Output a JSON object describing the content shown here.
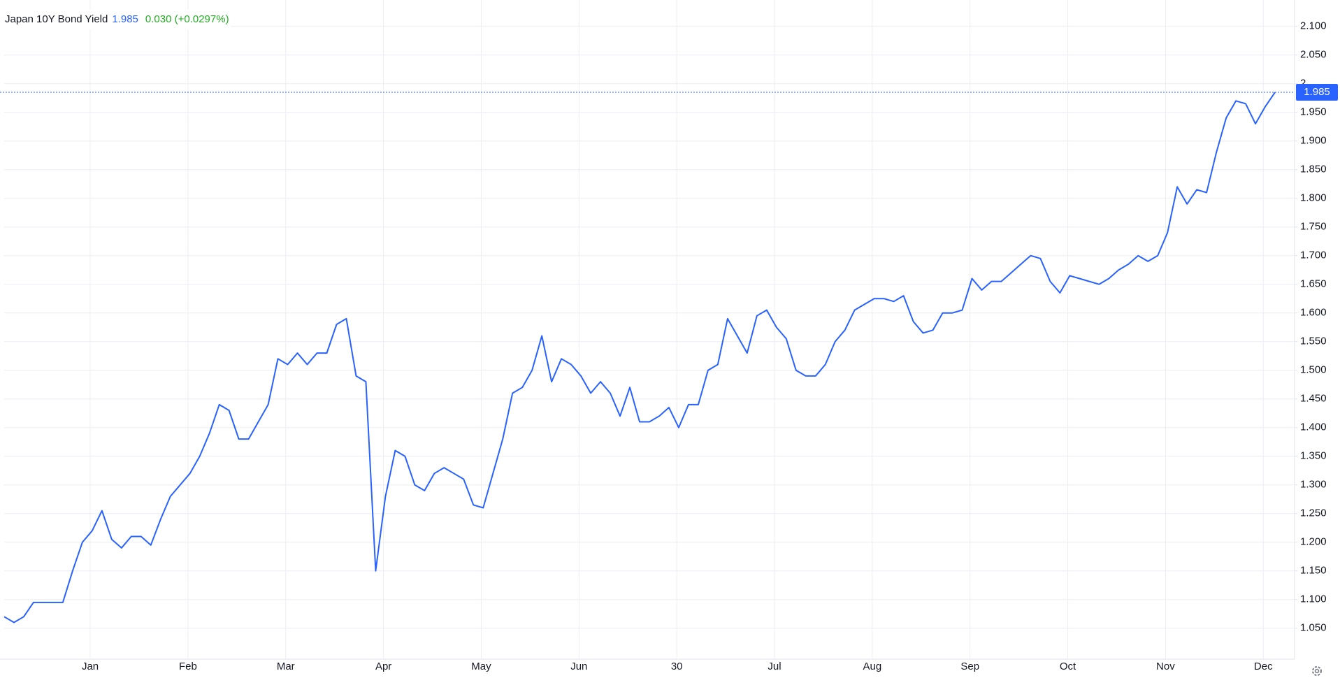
{
  "chart_data": {
    "type": "line",
    "title": "Japan 10Y Bond Yield",
    "last_value": 1.985,
    "change": "0.030 (+0.0297%)",
    "series": [
      {
        "name": "Japan 10Y Bond Yield",
        "color": "#2962ff",
        "values": [
          1.07,
          1.06,
          1.07,
          1.095,
          1.095,
          1.095,
          1.095,
          1.15,
          1.2,
          1.22,
          1.255,
          1.205,
          1.19,
          1.21,
          1.21,
          1.195,
          1.24,
          1.28,
          1.3,
          1.32,
          1.35,
          1.39,
          1.44,
          1.43,
          1.38,
          1.38,
          1.41,
          1.44,
          1.52,
          1.51,
          1.53,
          1.51,
          1.53,
          1.53,
          1.58,
          1.59,
          1.49,
          1.48,
          1.15,
          1.28,
          1.36,
          1.35,
          1.3,
          1.29,
          1.32,
          1.33,
          1.32,
          1.31,
          1.265,
          1.26,
          1.32,
          1.38,
          1.46,
          1.47,
          1.5,
          1.56,
          1.48,
          1.52,
          1.51,
          1.49,
          1.46,
          1.48,
          1.46,
          1.42,
          1.47,
          1.41,
          1.41,
          1.42,
          1.435,
          1.4,
          1.44,
          1.44,
          1.5,
          1.51,
          1.59,
          1.56,
          1.53,
          1.595,
          1.605,
          1.575,
          1.555,
          1.5,
          1.49,
          1.49,
          1.51,
          1.55,
          1.57,
          1.605,
          1.615,
          1.625,
          1.625,
          1.62,
          1.63,
          1.585,
          1.565,
          1.57,
          1.6,
          1.6,
          1.605,
          1.66,
          1.64,
          1.655,
          1.655,
          1.67,
          1.685,
          1.7,
          1.695,
          1.655,
          1.635,
          1.665,
          1.66,
          1.655,
          1.65,
          1.66,
          1.675,
          1.685,
          1.7,
          1.69,
          1.7,
          1.74,
          1.82,
          1.79,
          1.815,
          1.81,
          1.88,
          1.94,
          1.97,
          1.965,
          1.93,
          1.96,
          1.985
        ]
      }
    ],
    "xlim": [
      0,
      132
    ],
    "xticks": [
      {
        "value": 8.8,
        "label": "Jan"
      },
      {
        "value": 18.8,
        "label": "Feb"
      },
      {
        "value": 28.8,
        "label": "Mar"
      },
      {
        "value": 38.8,
        "label": "Apr"
      },
      {
        "value": 48.8,
        "label": "May"
      },
      {
        "value": 58.8,
        "label": "Jun"
      },
      {
        "value": 68.8,
        "label": "30"
      },
      {
        "value": 78.8,
        "label": "Jul"
      },
      {
        "value": 88.8,
        "label": "Aug"
      },
      {
        "value": 98.8,
        "label": "Sep"
      },
      {
        "value": 108.8,
        "label": "Oct"
      },
      {
        "value": 118.8,
        "label": "Nov"
      },
      {
        "value": 128.8,
        "label": "Dec"
      }
    ],
    "ylim": [
      0.996,
      2.146
    ],
    "yticks": [
      {
        "value": 1.05,
        "label": "1.050"
      },
      {
        "value": 1.1,
        "label": "1.100"
      },
      {
        "value": 1.15,
        "label": "1.150"
      },
      {
        "value": 1.2,
        "label": "1.200"
      },
      {
        "value": 1.25,
        "label": "1.250"
      },
      {
        "value": 1.3,
        "label": "1.300"
      },
      {
        "value": 1.35,
        "label": "1.350"
      },
      {
        "value": 1.4,
        "label": "1.400"
      },
      {
        "value": 1.45,
        "label": "1.450"
      },
      {
        "value": 1.5,
        "label": "1.500"
      },
      {
        "value": 1.55,
        "label": "1.550"
      },
      {
        "value": 1.6,
        "label": "1.600"
      },
      {
        "value": 1.65,
        "label": "1.650"
      },
      {
        "value": 1.7,
        "label": "1.700"
      },
      {
        "value": 1.75,
        "label": "1.750"
      },
      {
        "value": 1.8,
        "label": "1.800"
      },
      {
        "value": 1.85,
        "label": "1.850"
      },
      {
        "value": 1.9,
        "label": "1.900"
      },
      {
        "value": 1.95,
        "label": "1.950"
      },
      2,
      {
        "value": 2.05,
        "label": "2.050"
      },
      {
        "value": 2.1,
        "label": "2.100"
      }
    ],
    "grid": true
  }
}
